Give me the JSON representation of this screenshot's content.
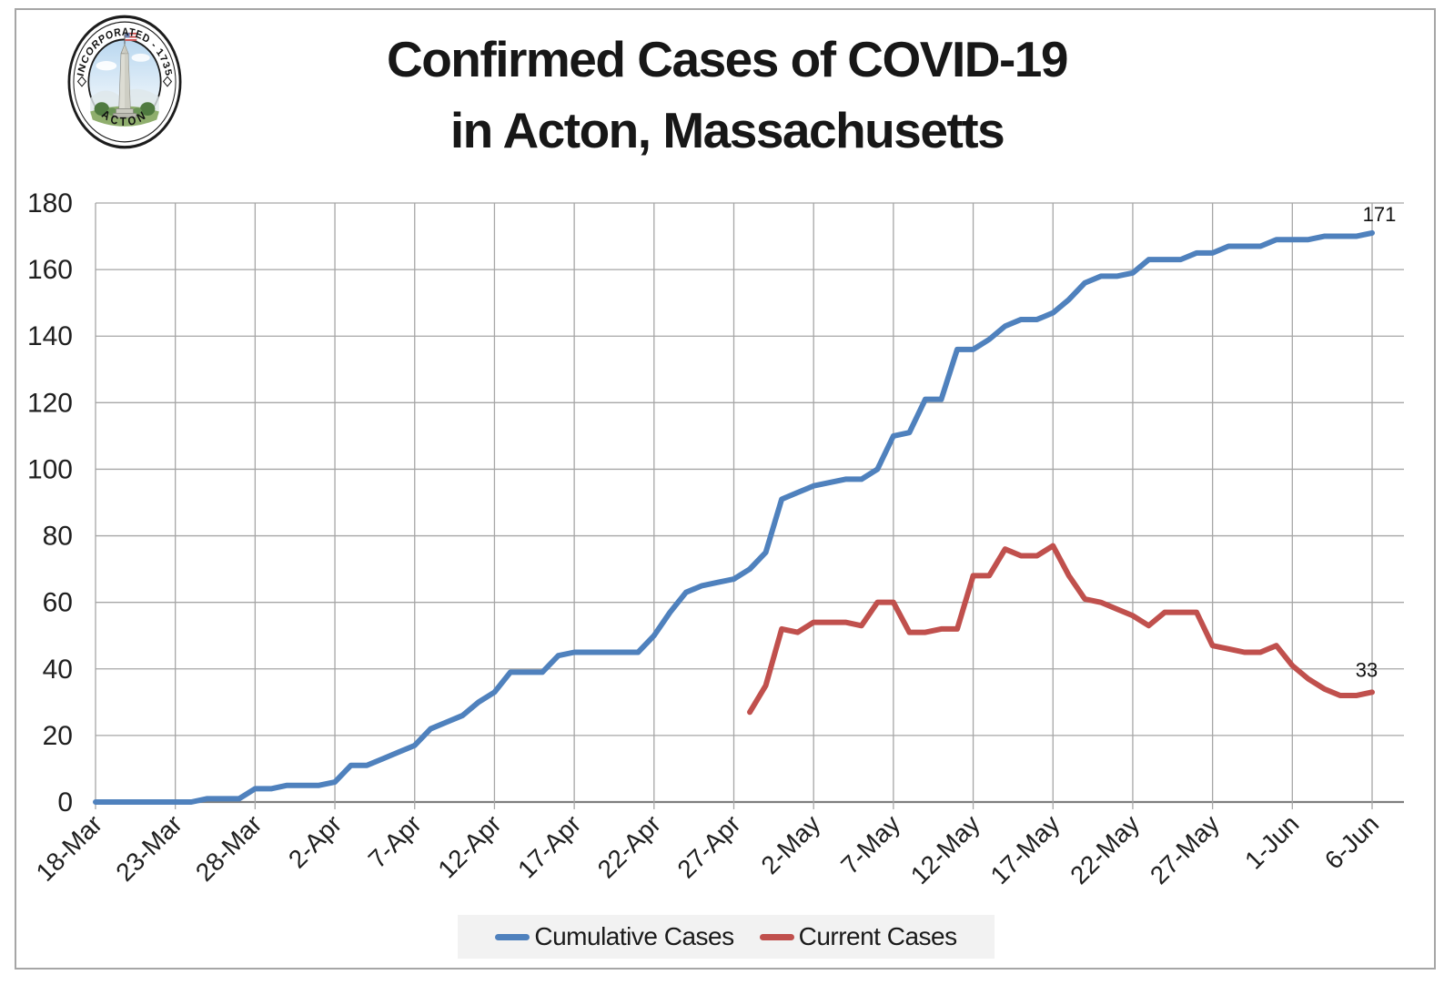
{
  "title": {
    "line1": "Confirmed Cases of COVID-19",
    "line2": "in Acton, Massachusetts"
  },
  "logo": {
    "arc_top_text": "INCORPORATED - 1735",
    "arc_bottom_text": "ACTON"
  },
  "legend": [
    {
      "label": "Cumulative Cases",
      "color": "#4F81BD"
    },
    {
      "label": "Current Cases",
      "color": "#C0504D"
    }
  ],
  "chart_data": {
    "type": "line",
    "title": "Confirmed Cases of COVID-19 in Acton, Massachusetts",
    "x_start_date": "18-Mar",
    "x_end_date": "6-Jun",
    "x_frequency": "daily",
    "x_tick_labels": [
      "18-Mar",
      "23-Mar",
      "28-Mar",
      "2-Apr",
      "7-Apr",
      "12-Apr",
      "17-Apr",
      "22-Apr",
      "27-Apr",
      "2-May",
      "7-May",
      "12-May",
      "17-May",
      "22-May",
      "27-May",
      "1-Jun",
      "6-Jun"
    ],
    "x_ticks_every_n_days": 5,
    "y_tick_labels": [
      "0",
      "20",
      "40",
      "60",
      "80",
      "100",
      "120",
      "140",
      "160",
      "180"
    ],
    "ylim": [
      0,
      180
    ],
    "grid": true,
    "legend_position": "bottom",
    "series": [
      {
        "name": "Cumulative Cases",
        "color": "#4F81BD",
        "start_day_index": 0,
        "values": [
          0,
          0,
          0,
          0,
          0,
          0,
          0,
          1,
          1,
          1,
          4,
          4,
          5,
          5,
          5,
          6,
          11,
          11,
          13,
          15,
          17,
          22,
          24,
          26,
          30,
          33,
          39,
          39,
          39,
          44,
          45,
          45,
          45,
          45,
          45,
          50,
          57,
          63,
          65,
          66,
          67,
          70,
          75,
          91,
          93,
          95,
          96,
          97,
          97,
          100,
          110,
          111,
          121,
          121,
          136,
          136,
          139,
          143,
          145,
          145,
          147,
          151,
          156,
          158,
          158,
          159,
          163,
          163,
          163,
          165,
          165,
          167,
          167,
          167,
          169,
          169,
          169,
          170,
          170,
          170,
          171
        ],
        "end_label": "171"
      },
      {
        "name": "Current Cases",
        "color": "#C0504D",
        "start_day_index": 41,
        "values": [
          27,
          35,
          52,
          51,
          54,
          54,
          54,
          53,
          60,
          60,
          51,
          51,
          52,
          52,
          68,
          68,
          76,
          74,
          74,
          77,
          68,
          61,
          60,
          58,
          56,
          53,
          57,
          57,
          57,
          47,
          46,
          45,
          45,
          47,
          41,
          37,
          34,
          32,
          32,
          33
        ],
        "end_label": "33"
      }
    ],
    "annotations": [
      {
        "text": "171",
        "series": "Cumulative Cases",
        "at": "last-point"
      },
      {
        "text": "33",
        "series": "Current Cases",
        "at": "last-point"
      }
    ],
    "colors": {
      "grid": "#A6A6A6",
      "axis": "#7F7F7F",
      "tick_text": "#1F1F1F",
      "legend_bg": "#F2F2F2"
    }
  }
}
